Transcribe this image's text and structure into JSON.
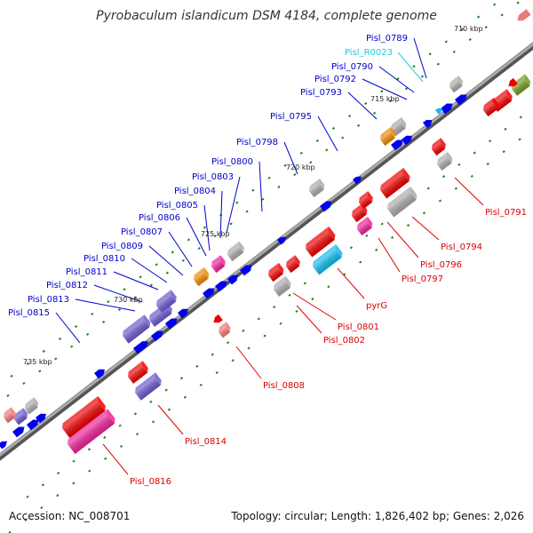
{
  "title": "Pyrobaculum islandicum DSM 4184, complete genome",
  "footer": {
    "accession": "Accession: NC_008701",
    "topology": "Topology: circular; Length: 1,826,402 bp; Genes: 2,026"
  },
  "colors": {
    "backbone": "#888888",
    "top_strand_label": "#0000cc",
    "bottom_strand_label": "#dd0000",
    "rna_label": "#22ccdd",
    "tick": "#118811",
    "gene_blue": "#0000ee",
    "gene_red": "#ee0000",
    "gene_grey": "#aaaaaa",
    "gene_slate": "#6a5acd",
    "gene_magenta": "#ee2299",
    "gene_cyan": "#11bbee",
    "gene_orange": "#ee8800",
    "gene_olive": "#779922",
    "gene_pink": "#ee7777"
  },
  "scale_labels": [
    "710 kbp",
    "715 kbp",
    "720 kbp",
    "725 kbp",
    "730 kbp",
    "735 kbp"
  ],
  "top_labels": [
    "Pisl_0789",
    "Pisl_R0023",
    "Pisl_0790",
    "Pisl_0792",
    "Pisl_0793",
    "Pisl_0795",
    "Pisl_0798",
    "Pisl_0800",
    "Pisl_0803",
    "Pisl_0804",
    "Pisl_0805",
    "Pisl_0806",
    "Pisl_0807",
    "Pisl_0809",
    "Pisl_0810",
    "Pisl_0811",
    "Pisl_0812",
    "Pisl_0813",
    "Pisl_0815"
  ],
  "bottom_labels": [
    "Pisl_0791",
    "Pisl_0794",
    "Pisl_0796",
    "Pisl_0797",
    "pyrG",
    "Pisl_0801",
    "Pisl_0802",
    "Pisl_0808",
    "Pisl_0814",
    "Pisl_0816"
  ]
}
